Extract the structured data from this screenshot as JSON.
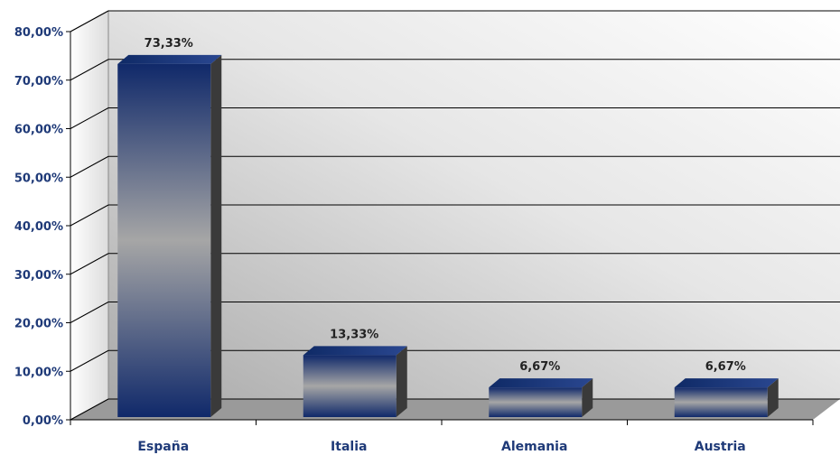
{
  "chart_data": {
    "type": "bar",
    "categories": [
      "España",
      "Italia",
      "Alemania",
      "Austria"
    ],
    "values": [
      73.33,
      13.33,
      6.67,
      6.67
    ],
    "data_labels": [
      "73,33%",
      "13,33%",
      "6,67%",
      "6,67%"
    ],
    "ylim": [
      0,
      80
    ],
    "yticks": [
      0,
      10,
      20,
      30,
      40,
      50,
      60,
      70,
      80
    ],
    "ytick_labels": [
      "0,00%",
      "10,00%",
      "20,00%",
      "30,00%",
      "40,00%",
      "50,00%",
      "60,00%",
      "70,00%",
      "80,00%"
    ],
    "grid": true,
    "style": "3d",
    "colors": {
      "bar_dark": "#10296a",
      "bar_light": "#a6a6a6",
      "bar_side": "#3a3a3a",
      "wall_light": "#ffffff",
      "wall_dark": "#a9a9a9",
      "axis_text": "#1f3a78"
    }
  }
}
